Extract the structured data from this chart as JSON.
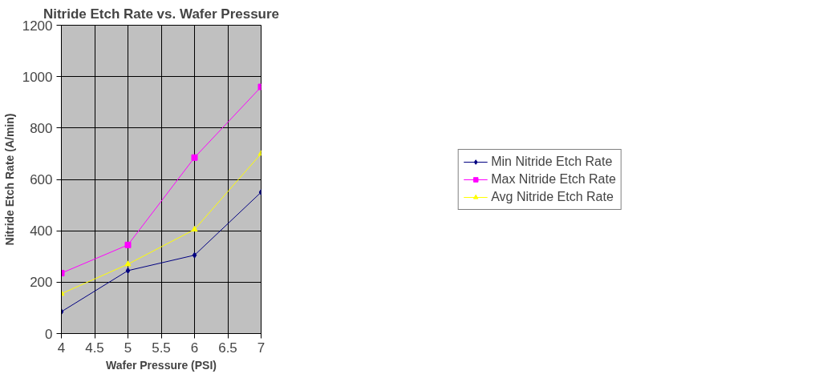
{
  "chart_data": {
    "type": "line",
    "title": "Nitride Etch Rate vs. Wafer Pressure",
    "xlabel": "Wafer Pressure (PSI)",
    "ylabel": "Nitride Etch Rate (A/min)",
    "x": [
      4,
      5,
      6,
      7
    ],
    "series": [
      {
        "name": "Min Nitride Etch Rate",
        "color": "#000080",
        "values": [
          85,
          245,
          305,
          550
        ],
        "marker": "diamond"
      },
      {
        "name": "Max Nitride Etch Rate",
        "color": "#ff00ff",
        "values": [
          235,
          345,
          685,
          960
        ],
        "marker": "square"
      },
      {
        "name": "Avg Nitride Etch Rate",
        "color": "#ffff00",
        "values": [
          155,
          270,
          405,
          700
        ],
        "marker": "triangle"
      }
    ],
    "xlim": [
      4,
      7
    ],
    "xticks": [
      4,
      4.5,
      5,
      5.5,
      6,
      6.5,
      7
    ],
    "ylim": [
      0,
      1200
    ],
    "yticks": [
      0,
      200,
      400,
      600,
      800,
      1000,
      1200
    ],
    "grid": true,
    "legend": "right"
  }
}
